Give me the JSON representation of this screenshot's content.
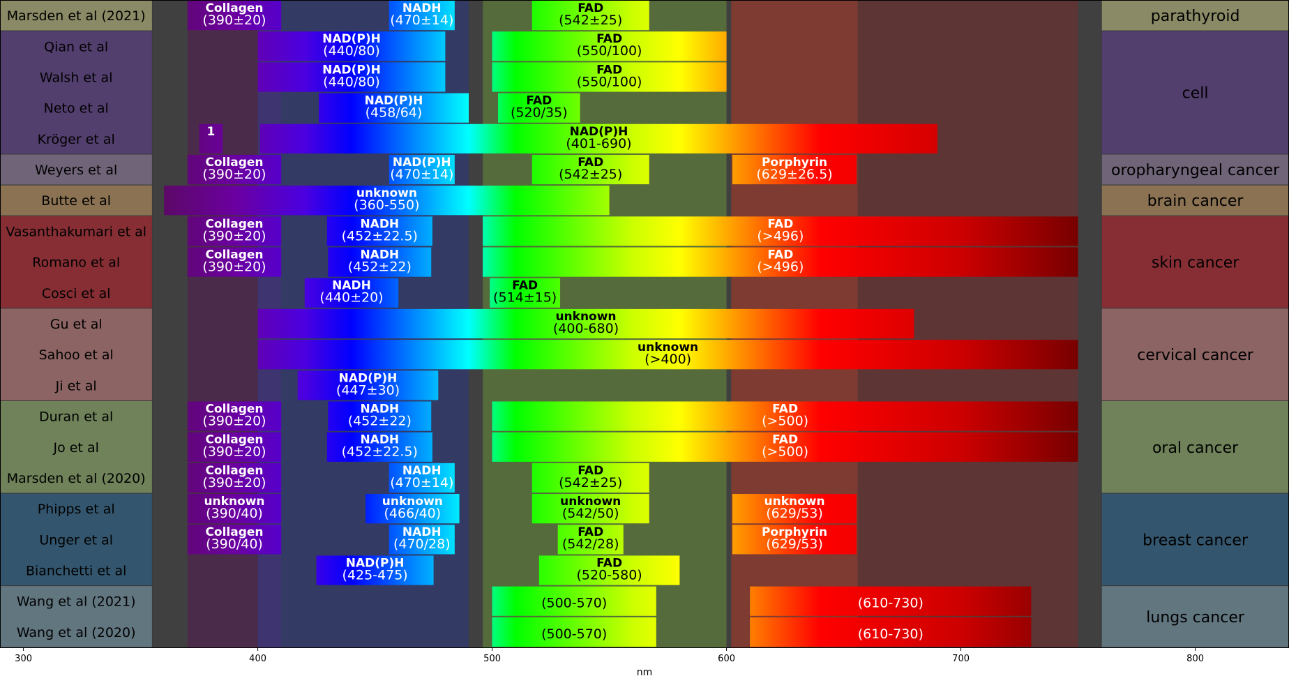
{
  "chart_data": {
    "type": "bar",
    "orientation": "horizontal",
    "xlabel": "nm",
    "xlim": [
      290,
      840
    ],
    "xticks": [
      300,
      400,
      500,
      600,
      700,
      800
    ],
    "background_regions": [
      {
        "x0": 355,
        "x1": 370,
        "color": "#404040"
      },
      {
        "x0": 370,
        "x1": 400,
        "color": "#4b2b4a"
      },
      {
        "x0": 400,
        "x1": 410,
        "color": "#3d3470"
      },
      {
        "x0": 410,
        "x1": 490,
        "color": "#333a63"
      },
      {
        "x0": 490,
        "x1": 496,
        "color": "#404040"
      },
      {
        "x0": 496,
        "x1": 600,
        "color": "#556b3b"
      },
      {
        "x0": 600,
        "x1": 602,
        "color": "#404040"
      },
      {
        "x0": 602,
        "x1": 656,
        "color": "#7e3b31"
      },
      {
        "x0": 656,
        "x1": 750,
        "color": "#5e3535"
      },
      {
        "x0": 750,
        "x1": 760,
        "color": "#404040"
      }
    ],
    "studies": [
      "Marsden et al (2021)",
      "Qian et al",
      "Walsh et al",
      "Neto et al",
      "Kröger et al",
      "Weyers et al",
      "Butte et al",
      "Vasanthakumari et al",
      "Romano et al",
      "Cosci et al",
      "Gu et al",
      "Sahoo et al",
      "Ji et al",
      "Duran et al",
      "Jo et al",
      "Marsden et al (2020)",
      "Phipps et al",
      "Unger et al",
      "Bianchetti et al",
      "Wang et al (2021)",
      "Wang et al (2020)"
    ],
    "categories": [
      {
        "name": "parathyroid",
        "rows": [
          0,
          0
        ],
        "color": "#8a8a66"
      },
      {
        "name": "cell",
        "rows": [
          1,
          4
        ],
        "color": "#523f6e"
      },
      {
        "name": "oropharyngeal cancer",
        "rows": [
          5,
          5
        ],
        "color": "#6f6478"
      },
      {
        "name": "brain cancer",
        "rows": [
          6,
          6
        ],
        "color": "#8a7252"
      },
      {
        "name": "skin cancer",
        "rows": [
          7,
          9
        ],
        "color": "#862e34"
      },
      {
        "name": "cervical cancer",
        "rows": [
          10,
          12
        ],
        "color": "#8d6464"
      },
      {
        "name": "oral cancer",
        "rows": [
          13,
          15
        ],
        "color": "#6f8259"
      },
      {
        "name": "breast cancer",
        "rows": [
          16,
          18
        ],
        "color": "#33566e"
      },
      {
        "name": "lungs cancer",
        "rows": [
          19,
          20
        ],
        "color": "#627680"
      }
    ],
    "bars": [
      {
        "row": 0,
        "x0": 370,
        "x1": 410,
        "name": "Collagen",
        "range": "(390±20)"
      },
      {
        "row": 0,
        "x0": 456,
        "x1": 484,
        "name": "NADH",
        "range": "(470±14)"
      },
      {
        "row": 0,
        "x0": 517,
        "x1": 567,
        "name": "FAD",
        "range": "(542±25)"
      },
      {
        "row": 1,
        "x0": 400,
        "x1": 480,
        "name": "NAD(P)H",
        "range": "(440/80)"
      },
      {
        "row": 1,
        "x0": 500,
        "x1": 600,
        "name": "FAD",
        "range": "(550/100)"
      },
      {
        "row": 2,
        "x0": 400,
        "x1": 480,
        "name": "NAD(P)H",
        "range": "(440/80)"
      },
      {
        "row": 2,
        "x0": 500,
        "x1": 600,
        "name": "FAD",
        "range": "(550/100)"
      },
      {
        "row": 3,
        "x0": 426,
        "x1": 490,
        "name": "NAD(P)H",
        "range": "(458/64)"
      },
      {
        "row": 3,
        "x0": 502.5,
        "x1": 537.5,
        "name": "FAD",
        "range": "(520/35)"
      },
      {
        "row": 4,
        "x0": 375,
        "x1": 385,
        "name": "1",
        "range": ""
      },
      {
        "row": 4,
        "x0": 401,
        "x1": 690,
        "name": "NAD(P)H",
        "range": "(401-690)"
      },
      {
        "row": 5,
        "x0": 370,
        "x1": 410,
        "name": "Collagen",
        "range": "(390±20)"
      },
      {
        "row": 5,
        "x0": 456,
        "x1": 484,
        "name": "NAD(P)H",
        "range": "(470±14)"
      },
      {
        "row": 5,
        "x0": 517,
        "x1": 567,
        "name": "FAD",
        "range": "(542±25)"
      },
      {
        "row": 5,
        "x0": 602.5,
        "x1": 655.5,
        "name": "Porphyrin",
        "range": "(629±26.5)"
      },
      {
        "row": 6,
        "x0": 360,
        "x1": 550,
        "name": "unknown",
        "range": "(360-550)"
      },
      {
        "row": 7,
        "x0": 370,
        "x1": 410,
        "name": "Collagen",
        "range": "(390±20)"
      },
      {
        "row": 7,
        "x0": 429.5,
        "x1": 474.5,
        "name": "NADH",
        "range": "(452±22.5)"
      },
      {
        "row": 7,
        "x0": 496,
        "x1": 750,
        "name": "FAD",
        "range": "(>496)"
      },
      {
        "row": 8,
        "x0": 370,
        "x1": 410,
        "name": "Collagen",
        "range": "(390±20)"
      },
      {
        "row": 8,
        "x0": 430,
        "x1": 474,
        "name": "NADH",
        "range": "(452±22)"
      },
      {
        "row": 8,
        "x0": 496,
        "x1": 750,
        "name": "FAD",
        "range": "(>496)"
      },
      {
        "row": 9,
        "x0": 420,
        "x1": 460,
        "name": "NADH",
        "range": "(440±20)"
      },
      {
        "row": 9,
        "x0": 499,
        "x1": 529,
        "name": "FAD",
        "range": "(514±15)"
      },
      {
        "row": 10,
        "x0": 400,
        "x1": 680,
        "name": "unknown",
        "range": "(400-680)"
      },
      {
        "row": 11,
        "x0": 400,
        "x1": 750,
        "name": "unknown",
        "range": "(>400)"
      },
      {
        "row": 12,
        "x0": 417,
        "x1": 477,
        "name": "NAD(P)H",
        "range": "(447±30)"
      },
      {
        "row": 13,
        "x0": 370,
        "x1": 410,
        "name": "Collagen",
        "range": "(390±20)"
      },
      {
        "row": 13,
        "x0": 430,
        "x1": 474,
        "name": "NADH",
        "range": "(452±22)"
      },
      {
        "row": 13,
        "x0": 500,
        "x1": 750,
        "name": "FAD",
        "range": "(>500)"
      },
      {
        "row": 14,
        "x0": 370,
        "x1": 410,
        "name": "Collagen",
        "range": "(390±20)"
      },
      {
        "row": 14,
        "x0": 429.5,
        "x1": 474.5,
        "name": "NADH",
        "range": "(452±22.5)"
      },
      {
        "row": 14,
        "x0": 500,
        "x1": 750,
        "name": "FAD",
        "range": "(>500)"
      },
      {
        "row": 15,
        "x0": 370,
        "x1": 410,
        "name": "Collagen",
        "range": "(390±20)"
      },
      {
        "row": 15,
        "x0": 456,
        "x1": 484,
        "name": "NADH",
        "range": "(470±14)"
      },
      {
        "row": 15,
        "x0": 517,
        "x1": 567,
        "name": "FAD",
        "range": "(542±25)"
      },
      {
        "row": 16,
        "x0": 370,
        "x1": 410,
        "name": "unknown",
        "range": "(390/40)"
      },
      {
        "row": 16,
        "x0": 446,
        "x1": 486,
        "name": "unknown",
        "range": "(466/40)"
      },
      {
        "row": 16,
        "x0": 517,
        "x1": 567,
        "name": "unknown",
        "range": "(542/50)"
      },
      {
        "row": 16,
        "x0": 602.5,
        "x1": 655.5,
        "name": "unknown",
        "range": "(629/53)"
      },
      {
        "row": 17,
        "x0": 370,
        "x1": 410,
        "name": "Collagen",
        "range": "(390/40)"
      },
      {
        "row": 17,
        "x0": 456,
        "x1": 484,
        "name": "NADH",
        "range": "(470/28)"
      },
      {
        "row": 17,
        "x0": 528,
        "x1": 556,
        "name": "FAD",
        "range": "(542/28)"
      },
      {
        "row": 17,
        "x0": 602.5,
        "x1": 655.5,
        "name": "Porphyrin",
        "range": "(629/53)"
      },
      {
        "row": 18,
        "x0": 425,
        "x1": 475,
        "name": "NAD(P)H",
        "range": "(425-475)"
      },
      {
        "row": 18,
        "x0": 520,
        "x1": 580,
        "name": "FAD",
        "range": "(520-580)"
      },
      {
        "row": 19,
        "x0": 500,
        "x1": 570,
        "name": "",
        "range": "(500-570)"
      },
      {
        "row": 19,
        "x0": 610,
        "x1": 730,
        "name": "",
        "range": "(610-730)"
      },
      {
        "row": 20,
        "x0": 500,
        "x1": 570,
        "name": "",
        "range": "(500-570)"
      },
      {
        "row": 20,
        "x0": 610,
        "x1": 730,
        "name": "",
        "range": "(610-730)"
      }
    ]
  }
}
